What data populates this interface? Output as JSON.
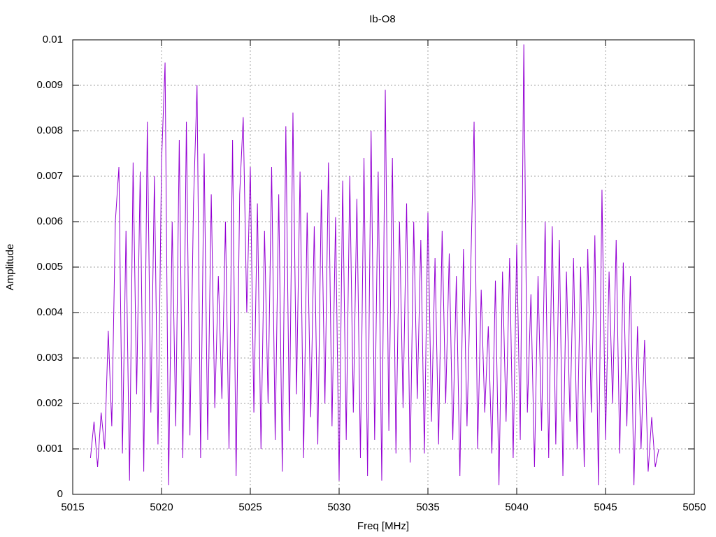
{
  "chart_data": {
    "type": "line",
    "title": "Ib-O8",
    "xlabel": "Freq [MHz]",
    "ylabel": "Amplitude",
    "color": "#9400d3",
    "grid": true,
    "xlim": [
      5015,
      5050
    ],
    "xticks": [
      5015,
      5020,
      5025,
      5030,
      5035,
      5040,
      5045,
      5050
    ],
    "ylim": [
      0,
      0.01
    ],
    "yticks": [
      0,
      0.001,
      0.002,
      0.003,
      0.004,
      0.005,
      0.006,
      0.007,
      0.008,
      0.009,
      0.01
    ],
    "x": [
      5016,
      5016.2,
      5016.4,
      5016.6,
      5016.8,
      5017,
      5017.2,
      5017.4,
      5017.6,
      5017.8,
      5018,
      5018.2,
      5018.4,
      5018.6,
      5018.8,
      5019,
      5019.2,
      5019.4,
      5019.6,
      5019.8,
      5020,
      5020.2,
      5020.4,
      5020.6,
      5020.8,
      5021,
      5021.2,
      5021.4,
      5021.6,
      5021.8,
      5022,
      5022.2,
      5022.4,
      5022.6,
      5022.8,
      5023,
      5023.2,
      5023.4,
      5023.6,
      5023.8,
      5024,
      5024.2,
      5024.4,
      5024.6,
      5024.8,
      5025,
      5025.2,
      5025.4,
      5025.6,
      5025.8,
      5026,
      5026.2,
      5026.4,
      5026.6,
      5026.8,
      5027,
      5027.2,
      5027.4,
      5027.6,
      5027.8,
      5028,
      5028.2,
      5028.4,
      5028.6,
      5028.8,
      5029,
      5029.2,
      5029.4,
      5029.6,
      5029.8,
      5030,
      5030.2,
      5030.4,
      5030.6,
      5030.8,
      5031,
      5031.2,
      5031.4,
      5031.6,
      5031.8,
      5032,
      5032.2,
      5032.4,
      5032.6,
      5032.8,
      5033,
      5033.2,
      5033.4,
      5033.6,
      5033.8,
      5034,
      5034.2,
      5034.4,
      5034.6,
      5034.8,
      5035,
      5035.2,
      5035.4,
      5035.6,
      5035.8,
      5036,
      5036.2,
      5036.4,
      5036.6,
      5036.8,
      5037,
      5037.2,
      5037.4,
      5037.6,
      5037.8,
      5038,
      5038.2,
      5038.4,
      5038.6,
      5038.8,
      5039,
      5039.2,
      5039.4,
      5039.6,
      5039.8,
      5040,
      5040.2,
      5040.4,
      5040.6,
      5040.8,
      5041,
      5041.2,
      5041.4,
      5041.6,
      5041.8,
      5042,
      5042.2,
      5042.4,
      5042.6,
      5042.8,
      5043,
      5043.2,
      5043.4,
      5043.6,
      5043.8,
      5044,
      5044.2,
      5044.4,
      5044.6,
      5044.8,
      5045,
      5045.2,
      5045.4,
      5045.6,
      5045.8,
      5046,
      5046.2,
      5046.4,
      5046.6,
      5046.8,
      5047,
      5047.2,
      5047.4,
      5047.6,
      5047.8,
      5048
    ],
    "values": [
      0.0008,
      0.0016,
      0.0006,
      0.0018,
      0.001,
      0.0036,
      0.0015,
      0.006,
      0.0072,
      0.0009,
      0.0058,
      0.0003,
      0.0073,
      0.0022,
      0.0071,
      0.0005,
      0.0082,
      0.0018,
      0.007,
      0.0011,
      0.0073,
      0.0095,
      0.0002,
      0.006,
      0.0015,
      0.0078,
      0.0008,
      0.0082,
      0.0013,
      0.0064,
      0.009,
      0.0008,
      0.0075,
      0.0012,
      0.0066,
      0.0019,
      0.0048,
      0.0021,
      0.006,
      0.001,
      0.0078,
      0.0004,
      0.0066,
      0.0083,
      0.004,
      0.0072,
      0.0018,
      0.0064,
      0.001,
      0.0058,
      0.002,
      0.0072,
      0.0012,
      0.0066,
      0.0005,
      0.0081,
      0.0014,
      0.0084,
      0.0022,
      0.0071,
      0.0008,
      0.0062,
      0.0017,
      0.0059,
      0.0011,
      0.0067,
      0.002,
      0.0073,
      0.0015,
      0.0061,
      0.0003,
      0.0069,
      0.0012,
      0.007,
      0.0018,
      0.0065,
      0.0008,
      0.0074,
      0.0004,
      0.008,
      0.0012,
      0.0071,
      0.0003,
      0.0089,
      0.0014,
      0.0074,
      0.0009,
      0.006,
      0.0019,
      0.0064,
      0.0007,
      0.006,
      0.0021,
      0.0056,
      0.0009,
      0.0062,
      0.0016,
      0.0052,
      0.0011,
      0.0058,
      0.002,
      0.0053,
      0.0012,
      0.0048,
      0.0004,
      0.0054,
      0.0015,
      0.0048,
      0.0082,
      0.001,
      0.0045,
      0.0018,
      0.0037,
      0.0009,
      0.0047,
      0.0002,
      0.0049,
      0.0016,
      0.0052,
      0.0008,
      0.0055,
      0.0012,
      0.0099,
      0.0018,
      0.0044,
      0.0006,
      0.0048,
      0.0014,
      0.006,
      0.0008,
      0.0059,
      0.0011,
      0.0056,
      0.0004,
      0.0049,
      0.0016,
      0.0052,
      0.001,
      0.005,
      0.0006,
      0.0054,
      0.0018,
      0.0057,
      0.0002,
      0.0067,
      0.0012,
      0.0049,
      0.002,
      0.0056,
      0.0009,
      0.0051,
      0.0015,
      0.0048,
      0.0002,
      0.0037,
      0.001,
      0.0034,
      0.0005,
      0.0017,
      0.0006,
      0.001
    ]
  }
}
